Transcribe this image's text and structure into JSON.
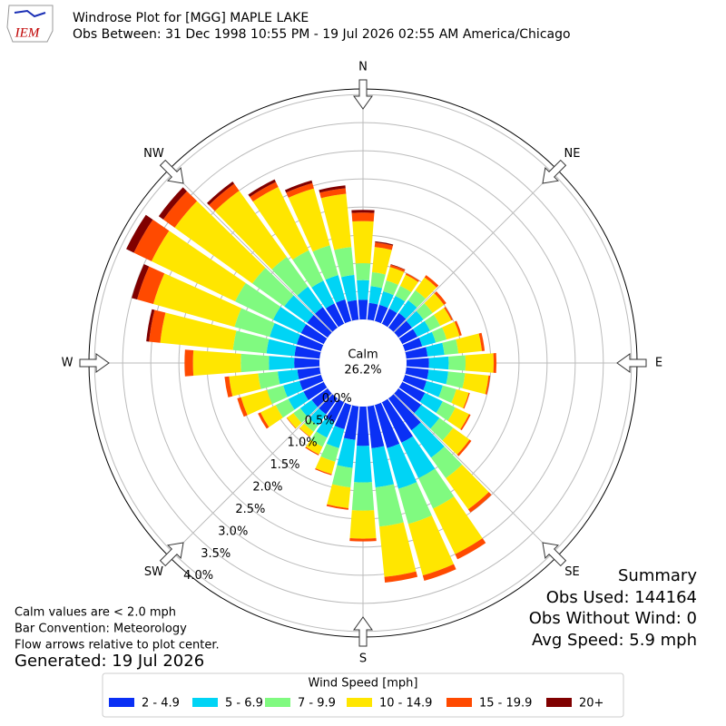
{
  "header": {
    "title": "Windrose Plot for [MGG] MAPLE LAKE",
    "subtitle": "Obs Between: 31 Dec 1998 10:55 PM - 19 Jul 2026 02:55 AM America/Chicago",
    "logo": "IEM"
  },
  "chart_data": {
    "type": "windrose",
    "x": [
      0,
      10,
      20,
      30,
      40,
      50,
      60,
      70,
      80,
      90,
      100,
      110,
      120,
      130,
      140,
      150,
      160,
      170,
      180,
      190,
      200,
      210,
      220,
      230,
      240,
      250,
      260,
      270,
      280,
      290,
      300,
      310,
      320,
      330,
      340,
      350
    ],
    "direction_labels": [
      "N",
      "NE",
      "E",
      "SE",
      "S",
      "SW",
      "W",
      "NW"
    ],
    "rlim": [
      0,
      4.1
    ],
    "rticks": [
      {
        "value": 0,
        "label": "0.0%"
      },
      {
        "value": 0.5,
        "label": "0.5%"
      },
      {
        "value": 1,
        "label": "1.0%"
      },
      {
        "value": 1.5,
        "label": "1.5%"
      },
      {
        "value": 2,
        "label": "2.0%"
      },
      {
        "value": 2.5,
        "label": "2.5%"
      },
      {
        "value": 3,
        "label": "3.0%"
      },
      {
        "value": 3.5,
        "label": "3.5%"
      },
      {
        "value": 4,
        "label": "4.0%"
      }
    ],
    "calm_label": "Calm",
    "calm_value": "26.2%",
    "legend_title": "Wind Speed [mph]",
    "series": [
      {
        "name": "2 - 4.9",
        "color": "#0a30f5",
        "values": [
          0.35,
          0.3,
          0.3,
          0.3,
          0.32,
          0.3,
          0.3,
          0.32,
          0.38,
          0.4,
          0.4,
          0.4,
          0.45,
          0.5,
          0.7,
          0.8,
          0.8,
          0.75,
          0.7,
          0.6,
          0.45,
          0.4,
          0.35,
          0.35,
          0.4,
          0.4,
          0.4,
          0.45,
          0.45,
          0.45,
          0.45,
          0.45,
          0.45,
          0.4,
          0.4,
          0.35
        ]
      },
      {
        "name": "5 - 6.9",
        "color": "#00d4f5",
        "values": [
          0.35,
          0.3,
          0.25,
          0.25,
          0.28,
          0.25,
          0.25,
          0.25,
          0.3,
          0.35,
          0.35,
          0.3,
          0.35,
          0.4,
          0.6,
          0.7,
          0.75,
          0.7,
          0.65,
          0.5,
          0.35,
          0.3,
          0.25,
          0.25,
          0.3,
          0.3,
          0.35,
          0.45,
          0.5,
          0.5,
          0.55,
          0.5,
          0.45,
          0.45,
          0.45,
          0.45
        ]
      },
      {
        "name": "7 - 9.9",
        "color": "#80fa80",
        "values": [
          0.3,
          0.25,
          0.2,
          0.2,
          0.22,
          0.2,
          0.2,
          0.2,
          0.25,
          0.3,
          0.3,
          0.25,
          0.25,
          0.3,
          0.45,
          0.6,
          0.65,
          0.7,
          0.5,
          0.35,
          0.25,
          0.18,
          0.13,
          0.15,
          0.25,
          0.3,
          0.35,
          0.5,
          0.6,
          0.65,
          0.75,
          0.7,
          0.65,
          0.6,
          0.55,
          0.5
        ]
      },
      {
        "name": "10 - 14.9",
        "color": "#ffe600",
        "values": [
          0.75,
          0.45,
          0.25,
          0.22,
          0.28,
          0.25,
          0.22,
          0.24,
          0.42,
          0.5,
          0.42,
          0.23,
          0.27,
          0.36,
          0.68,
          0.9,
          0.95,
          0.9,
          0.5,
          0.37,
          0.23,
          0.15,
          0.11,
          0.14,
          0.3,
          0.48,
          0.52,
          0.85,
          1.3,
          1.5,
          1.65,
          1.7,
          1.45,
          1.25,
          1.05,
          0.95
        ]
      },
      {
        "name": "15 - 19.9",
        "color": "#ff4a00",
        "values": [
          0.15,
          0.08,
          0.04,
          0.03,
          0.05,
          0.05,
          0.03,
          0.04,
          0.05,
          0.05,
          0.03,
          0.02,
          0.03,
          0.04,
          0.07,
          0.1,
          0.1,
          0.1,
          0.05,
          0.03,
          0.02,
          0.02,
          0.01,
          0.01,
          0.05,
          0.07,
          0.08,
          0.15,
          0.2,
          0.3,
          0.35,
          0.25,
          0.15,
          0.1,
          0.1,
          0.1
        ]
      },
      {
        "name": "20+",
        "color": "#800000",
        "values": [
          0.05,
          0.02,
          0.01,
          0,
          0,
          0,
          0,
          0,
          0,
          0,
          0,
          0,
          0,
          0,
          0,
          0,
          0,
          0,
          0,
          0,
          0,
          0,
          0,
          0,
          0,
          0,
          0,
          0,
          0.05,
          0.1,
          0.15,
          0.1,
          0.05,
          0.05,
          0.05,
          0.05
        ]
      }
    ]
  },
  "summary": {
    "title": "Summary",
    "lines": [
      "Obs Used: 144164",
      "Obs Without Wind: 0",
      "Avg Speed: 5.9 mph"
    ]
  },
  "notes": [
    "Calm values are < 2.0 mph",
    "Bar Convention: Meteorology",
    "Flow arrows relative to plot center."
  ],
  "generated": "Generated: 19 Jul 2026"
}
